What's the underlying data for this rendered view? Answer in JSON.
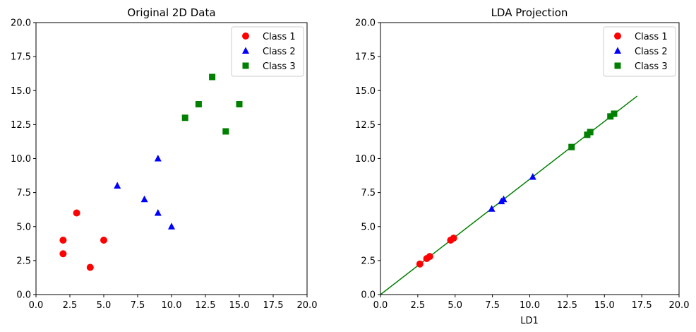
{
  "chart_data": [
    {
      "type": "scatter",
      "title": "Original 2D Data",
      "xlabel": "",
      "ylabel": "",
      "xlim": [
        0,
        20
      ],
      "ylim": [
        0,
        20
      ],
      "xticks": [
        "0.0",
        "2.5",
        "5.0",
        "7.5",
        "10.0",
        "12.5",
        "15.0",
        "17.5",
        "20.0"
      ],
      "yticks": [
        "0.0",
        "2.5",
        "5.0",
        "7.5",
        "10.0",
        "12.5",
        "15.0",
        "17.5",
        "20.0"
      ],
      "grid": false,
      "legend_position": "top-right",
      "series": [
        {
          "name": "Class 1",
          "color": "#ff0000",
          "marker": "circle",
          "points": [
            [
              2,
              4
            ],
            [
              2,
              3
            ],
            [
              3,
              6
            ],
            [
              4,
              2
            ],
            [
              5,
              4
            ]
          ]
        },
        {
          "name": "Class 2",
          "color": "#0000ff",
          "marker": "triangle",
          "points": [
            [
              6,
              8
            ],
            [
              8,
              7
            ],
            [
              9,
              10
            ],
            [
              9,
              6
            ],
            [
              10,
              5
            ]
          ]
        },
        {
          "name": "Class 3",
          "color": "#008000",
          "marker": "square",
          "points": [
            [
              11,
              13
            ],
            [
              12,
              14
            ],
            [
              13,
              16
            ],
            [
              14,
              12
            ],
            [
              15,
              14
            ]
          ]
        }
      ]
    },
    {
      "type": "scatter",
      "title": "LDA Projection",
      "xlabel": "LD1",
      "ylabel": "",
      "xlim": [
        0,
        20
      ],
      "ylim": [
        0,
        20
      ],
      "xticks": [
        "0.0",
        "2.5",
        "5.0",
        "7.5",
        "10.0",
        "12.5",
        "15.0",
        "17.5",
        "20.0"
      ],
      "yticks": [
        "0.0",
        "2.5",
        "5.0",
        "7.5",
        "10.0",
        "12.5",
        "15.0",
        "17.5",
        "20.0"
      ],
      "grid": false,
      "legend_position": "top-right",
      "line": {
        "color": "#008000",
        "points": [
          [
            0,
            0
          ],
          [
            17.2,
            14.6
          ]
        ]
      },
      "series": [
        {
          "name": "Class 1",
          "color": "#ff0000",
          "marker": "circle",
          "points": [
            [
              2.64,
              2.25
            ],
            [
              3.1,
              2.65
            ],
            [
              3.3,
              2.8
            ],
            [
              4.7,
              4.0
            ],
            [
              4.9,
              4.15
            ]
          ]
        },
        {
          "name": "Class 2",
          "color": "#0000ff",
          "marker": "triangle",
          "points": [
            [
              7.45,
              6.3
            ],
            [
              8.1,
              6.85
            ],
            [
              8.25,
              7.0
            ],
            [
              10.2,
              8.65
            ]
          ]
        },
        {
          "name": "Class 3",
          "color": "#008000",
          "marker": "square",
          "points": [
            [
              12.8,
              10.85
            ],
            [
              13.85,
              11.75
            ],
            [
              14.05,
              11.95
            ],
            [
              15.4,
              13.1
            ],
            [
              15.65,
              13.3
            ]
          ]
        }
      ]
    }
  ]
}
